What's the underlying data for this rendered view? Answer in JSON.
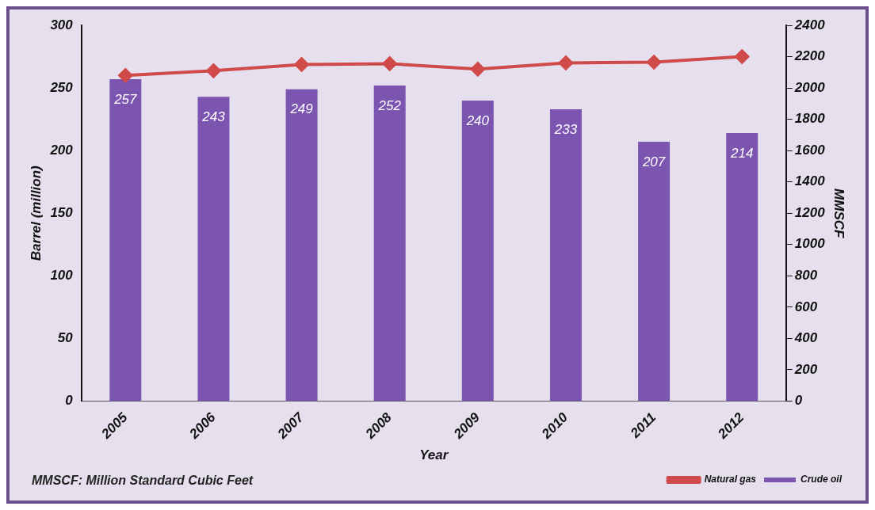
{
  "chart_data": {
    "type": "bar",
    "xlabel": "Year",
    "ylabel": "Barrel (million)",
    "y2label": "MMSCF",
    "categories": [
      "2005",
      "2006",
      "2007",
      "2008",
      "2009",
      "2010",
      "2011",
      "2012"
    ],
    "series": [
      {
        "name": "Crude oil",
        "color": "#7b55b0",
        "values": [
          257,
          243,
          249,
          252,
          240,
          233,
          207,
          214
        ],
        "value_labels": [
          "257",
          "243",
          "249",
          "252",
          "240",
          "233",
          "207",
          "214"
        ]
      },
      {
        "name": "Natural gas",
        "type": "line",
        "axis": "y2",
        "color": "#d04a4a",
        "marker": "diamond",
        "values": [
          2080,
          2110,
          2150,
          2155,
          2120,
          2160,
          2165,
          2200
        ]
      }
    ],
    "ylim": [
      0,
      300
    ],
    "yticks": [
      0,
      50,
      100,
      150,
      200,
      250,
      300
    ],
    "y2lim": [
      0,
      2400
    ],
    "y2ticks": [
      0,
      200,
      400,
      600,
      800,
      1000,
      1200,
      1400,
      1600,
      1800,
      2000,
      2200,
      2400
    ],
    "grid": false,
    "legend": "bottom right",
    "annotations": [
      "MMSCF: Million Standard Cubic Feet"
    ]
  }
}
